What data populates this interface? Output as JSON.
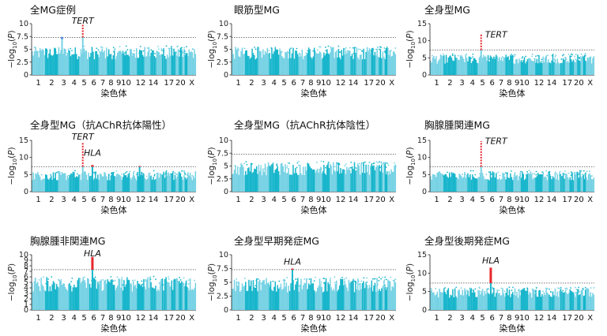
{
  "figure": {
    "ylabel": "−log10(P)",
    "xlabel": "染色体",
    "colors": {
      "light": "#76D2E4",
      "dark": "#16B5CB",
      "hit": "#E8262C",
      "peak_hla": "#5A8FE0",
      "threshold": "#777777"
    }
  },
  "chart_data": [
    {
      "type": "scatter",
      "title": "全MG症例",
      "xlabel": "染色体",
      "ylabel": "−log10(P)",
      "x_tick_labels": [
        "1",
        "2",
        "3",
        "4",
        "5",
        "6",
        "7",
        "8",
        "9",
        "10",
        "12",
        "14",
        "17",
        "20",
        "X"
      ],
      "ylim": [
        0,
        10
      ],
      "y_ticks": [
        0,
        2.5,
        5,
        7.5,
        10
      ],
      "threshold": 7.3,
      "baseline_max": 5.5,
      "peaks": [
        {
          "chromosome": "3",
          "value": 7.2,
          "significant": false
        },
        {
          "chromosome": "5",
          "value": 9.9,
          "significant": true
        }
      ],
      "annotations": [
        {
          "text": "TERT",
          "chromosome": "5",
          "value": 10.0
        }
      ]
    },
    {
      "type": "scatter",
      "title": "眼筋型MG",
      "xlabel": "染色体",
      "ylabel": "−log10(P)",
      "x_tick_labels": [
        "1",
        "2",
        "3",
        "4",
        "5",
        "6",
        "7",
        "8",
        "9",
        "10",
        "12",
        "14",
        "17",
        "20",
        "X"
      ],
      "ylim": [
        0,
        10
      ],
      "y_ticks": [
        0,
        2.5,
        5,
        7.5,
        10
      ],
      "threshold": 7.3,
      "baseline_max": 5.5,
      "peaks": [],
      "annotations": []
    },
    {
      "type": "scatter",
      "title": "全身型MG",
      "xlabel": "染色体",
      "ylabel": "−log10(P)",
      "x_tick_labels": [
        "1",
        "2",
        "3",
        "4",
        "5",
        "6",
        "7",
        "8",
        "9",
        "10",
        "12",
        "14",
        "17",
        "20",
        "X"
      ],
      "ylim": [
        0,
        15
      ],
      "y_ticks": [
        0,
        5,
        10,
        15
      ],
      "threshold": 7.3,
      "baseline_max": 6.0,
      "peaks": [
        {
          "chromosome": "5",
          "value": 12.0,
          "significant": true
        }
      ],
      "annotations": [
        {
          "text": "TERT",
          "chromosome": "5",
          "value": 11.0
        }
      ]
    },
    {
      "type": "scatter",
      "title": "全身型MG（抗AChR抗体陽性）",
      "xlabel": "染色体",
      "ylabel": "−log10(P)",
      "x_tick_labels": [
        "1",
        "2",
        "3",
        "4",
        "5",
        "6",
        "7",
        "8",
        "9",
        "10",
        "12",
        "14",
        "17",
        "20",
        "X"
      ],
      "ylim": [
        0,
        15
      ],
      "y_ticks": [
        0,
        5,
        10,
        15
      ],
      "threshold": 7.3,
      "baseline_max": 6.0,
      "peaks": [
        {
          "chromosome": "5",
          "value": 14.5,
          "significant": true
        },
        {
          "chromosome": "6",
          "value": 7.8,
          "significant": true
        },
        {
          "chromosome": "12",
          "value": 7.5,
          "significant": true
        }
      ],
      "annotations": [
        {
          "text": "TERT",
          "chromosome": "5",
          "value": 15.2
        },
        {
          "text": "HLA",
          "chromosome": "6",
          "value": 10.5
        }
      ]
    },
    {
      "type": "scatter",
      "title": "全身型MG（抗AChR抗体陰性）",
      "xlabel": "染色体",
      "ylabel": "−log10(P)",
      "x_tick_labels": [
        "1",
        "2",
        "3",
        "4",
        "5",
        "6",
        "7",
        "8",
        "9",
        "10",
        "12",
        "14",
        "17",
        "20",
        "X"
      ],
      "ylim": [
        0,
        10
      ],
      "y_ticks": [
        0,
        2.5,
        5,
        7.5,
        10
      ],
      "threshold": 7.3,
      "baseline_max": 5.8,
      "peaks": [],
      "annotations": []
    },
    {
      "type": "scatter",
      "title": "胸腺腫関連MG",
      "xlabel": "染色体",
      "ylabel": "−log10(P)",
      "x_tick_labels": [
        "1",
        "2",
        "3",
        "4",
        "5",
        "6",
        "7",
        "8",
        "9",
        "10",
        "12",
        "14",
        "17",
        "20",
        "X"
      ],
      "ylim": [
        0,
        15
      ],
      "y_ticks": [
        0,
        5,
        10,
        15
      ],
      "threshold": 7.3,
      "baseline_max": 6.0,
      "peaks": [
        {
          "chromosome": "5",
          "value": 14.8,
          "significant": true
        }
      ],
      "annotations": [
        {
          "text": "TERT",
          "chromosome": "5",
          "value": 14.0
        }
      ]
    },
    {
      "type": "scatter",
      "title": "胸腺腫非関連MG",
      "xlabel": "染色体",
      "ylabel": "−log10(P)",
      "x_tick_labels": [
        "1",
        "2",
        "3",
        "4",
        "5",
        "6",
        "7",
        "8",
        "9",
        "10",
        "12",
        "14",
        "17",
        "20",
        "X"
      ],
      "ylim": [
        0,
        10
      ],
      "y_ticks": [
        0,
        1,
        2,
        3,
        4,
        5,
        6,
        7,
        8,
        9,
        10
      ],
      "threshold": 7.3,
      "baseline_max": 6.0,
      "peaks": [
        {
          "chromosome": "6",
          "value": 9.6,
          "significant": true
        }
      ],
      "annotations": [
        {
          "text": "HLA",
          "chromosome": "6",
          "value": 9.7
        }
      ]
    },
    {
      "type": "scatter",
      "title": "全身型早期発症MG",
      "xlabel": "染色体",
      "ylabel": "−log10(P)",
      "x_tick_labels": [
        "1",
        "2",
        "3",
        "4",
        "5",
        "6",
        "7",
        "8",
        "9",
        "10",
        "12",
        "14",
        "17",
        "20",
        "X"
      ],
      "ylim": [
        0,
        10
      ],
      "y_ticks": [
        0,
        2.5,
        5,
        7.5,
        10
      ],
      "threshold": 7.3,
      "baseline_max": 5.8,
      "peaks": [
        {
          "chromosome": "6",
          "value": 7.5,
          "significant": true
        }
      ],
      "annotations": [
        {
          "text": "HLA",
          "chromosome": "6",
          "value": 8.2
        }
      ]
    },
    {
      "type": "scatter",
      "title": "全身型後期発症MG",
      "xlabel": "染色体",
      "ylabel": "−log10(P)",
      "x_tick_labels": [
        "1",
        "2",
        "3",
        "4",
        "5",
        "6",
        "7",
        "8",
        "9",
        "10",
        "12",
        "14",
        "17",
        "20",
        "X"
      ],
      "ylim": [
        0,
        15
      ],
      "y_ticks": [
        0,
        5,
        10,
        15
      ],
      "threshold": 7.3,
      "baseline_max": 6.0,
      "peaks": [
        {
          "chromosome": "6",
          "value": 11.5,
          "significant": true
        }
      ],
      "annotations": [
        {
          "text": "HLA",
          "chromosome": "6",
          "value": 12.6
        }
      ]
    }
  ]
}
